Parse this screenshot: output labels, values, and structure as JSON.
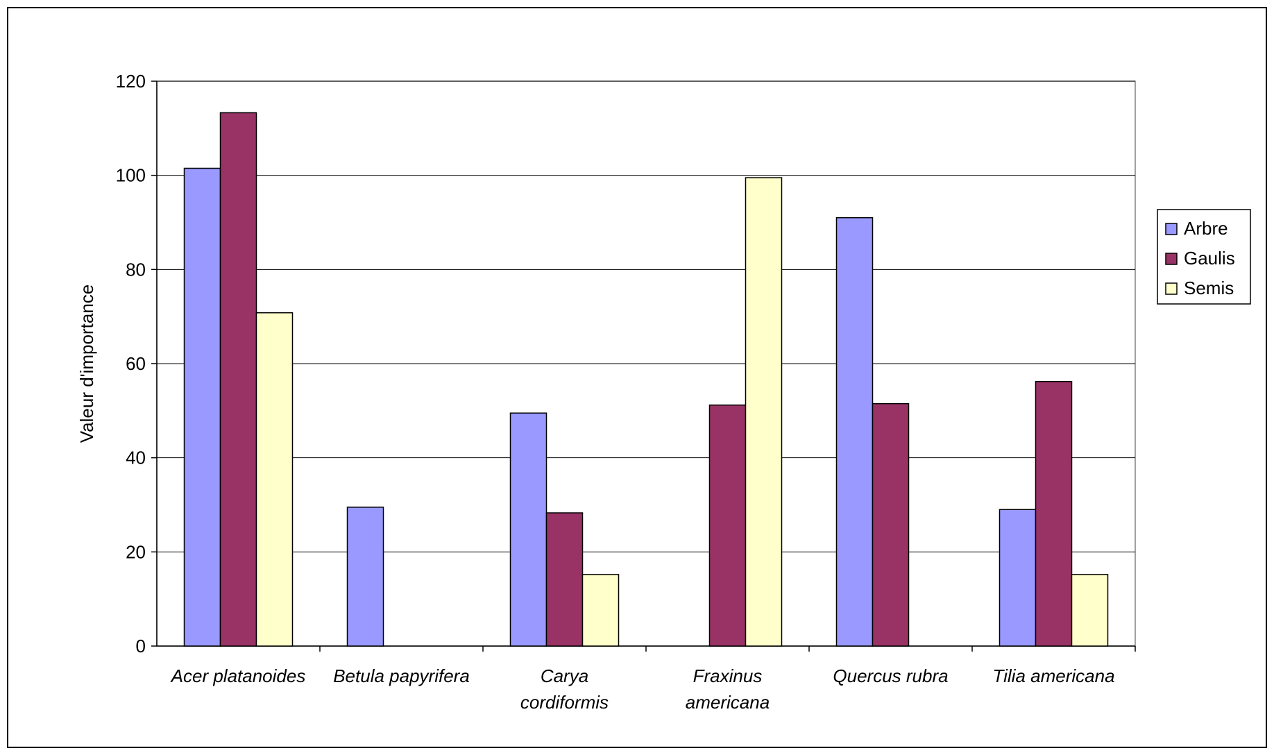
{
  "chart_data": {
    "type": "bar",
    "title": "",
    "xlabel": "",
    "ylabel": "Valeur d'importance",
    "ylim": [
      0,
      120
    ],
    "yticks": [
      0,
      20,
      40,
      60,
      80,
      100,
      120
    ],
    "grid": true,
    "legend_position": "right",
    "categories": [
      [
        "Acer platanoides"
      ],
      [
        "Betula papyrifera"
      ],
      [
        "Carya",
        "cordiformis"
      ],
      [
        "Fraxinus",
        "americana"
      ],
      [
        "Quercus rubra"
      ],
      [
        "Tilia americana"
      ]
    ],
    "series": [
      {
        "name": "Arbre",
        "color": "#9999FF",
        "values": [
          101.5,
          29.5,
          49.5,
          0,
          91,
          29
        ]
      },
      {
        "name": "Gaulis",
        "color": "#993366",
        "values": [
          113.3,
          0,
          28.3,
          51.2,
          51.5,
          56.2
        ]
      },
      {
        "name": "Semis",
        "color": "#FFFFCC",
        "values": [
          70.8,
          0,
          15.2,
          99.5,
          0,
          15.2
        ]
      }
    ]
  }
}
